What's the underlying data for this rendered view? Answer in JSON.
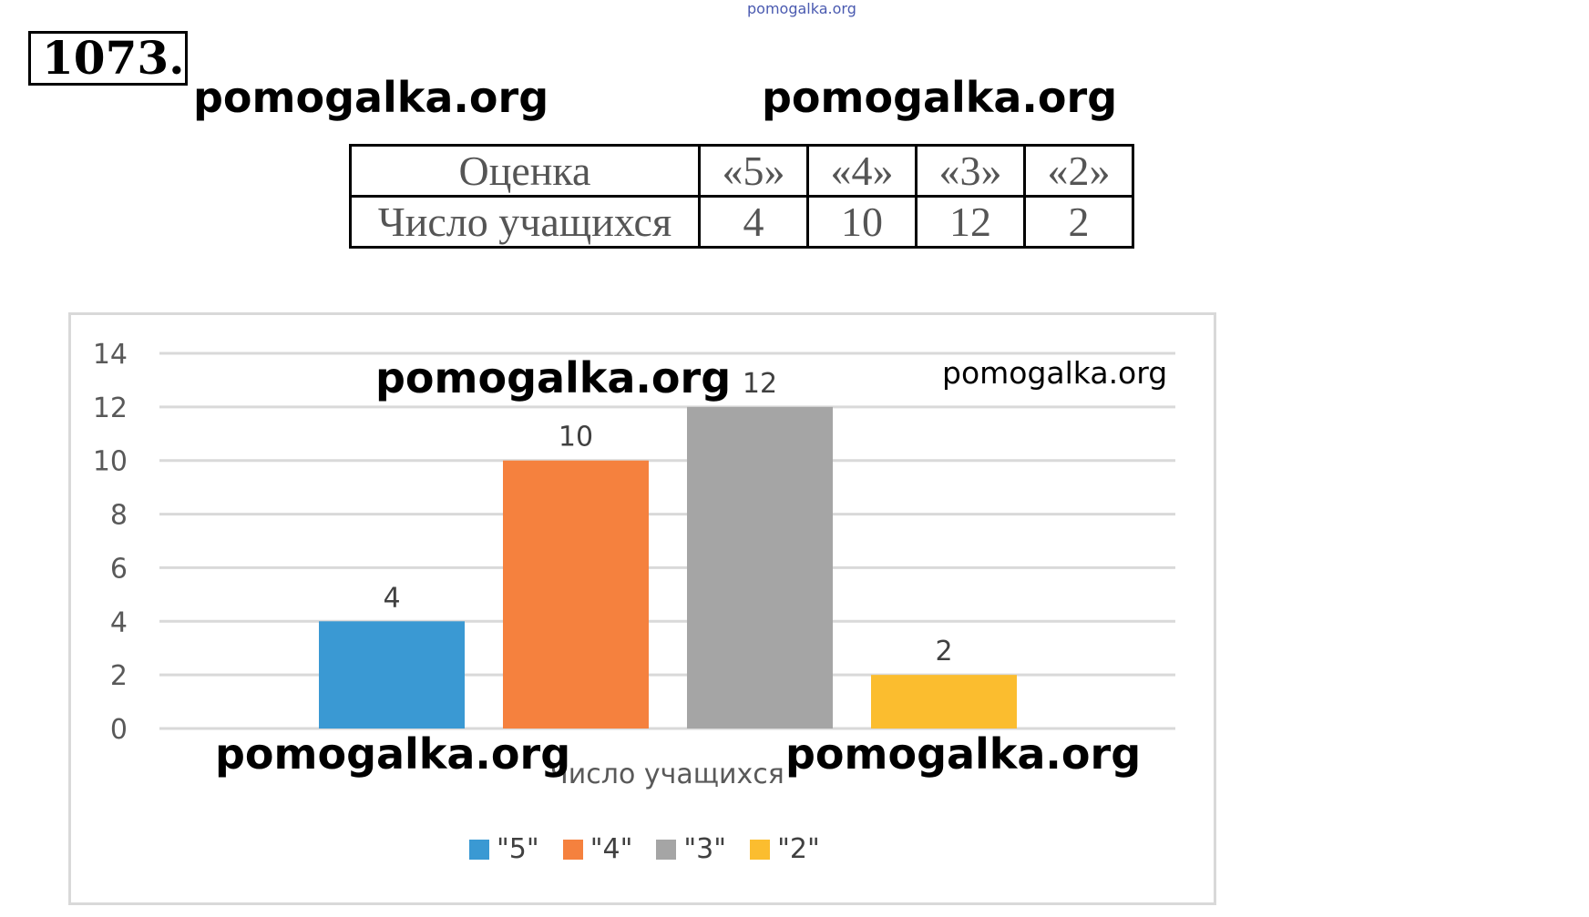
{
  "watermark_text": "pomogalka.org",
  "problem_number": "1073.",
  "table": {
    "row_headers": [
      "Оценка",
      "Число учащихся"
    ],
    "grades": [
      "«5»",
      "«4»",
      "«3»",
      "«2»"
    ],
    "counts": [
      "4",
      "10",
      "12",
      "2"
    ]
  },
  "chart_data": {
    "type": "bar",
    "categories": [
      "\"5\"",
      "\"4\"",
      "\"3\"",
      "\"2\""
    ],
    "values": [
      4,
      10,
      12,
      2
    ],
    "colors": [
      "#3a99d3",
      "#f5813e",
      "#a5a5a5",
      "#fbbd2f"
    ],
    "xlabel": "Число учащихся",
    "ylabel": "",
    "ylim": [
      0,
      14
    ],
    "yticks": [
      0,
      2,
      4,
      6,
      8,
      10,
      12,
      14
    ],
    "data_labels": [
      "4",
      "10",
      "12",
      "2"
    ],
    "grid": true,
    "legend": "bottom"
  }
}
